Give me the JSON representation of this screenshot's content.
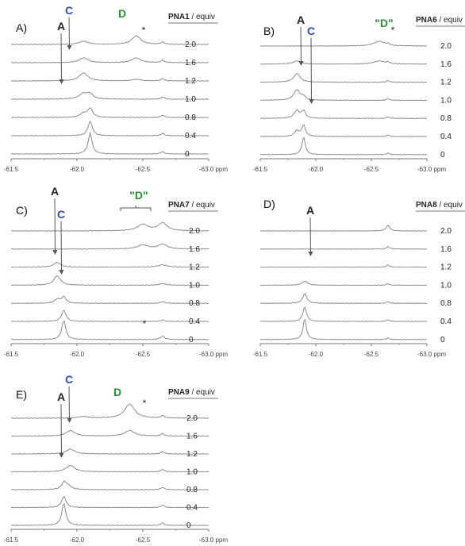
{
  "colors": {
    "trace": "#8c8c8c",
    "label_A": "#222222",
    "label_C": "#2f4fa8",
    "label_D": "#2e8b3a",
    "arrow": "#555555"
  },
  "chart_data": [
    {
      "type": "line",
      "panel": "A)",
      "compound": "PNA1",
      "equiv_label": " / equiv",
      "equivalents": [
        "2.0",
        "1.6",
        "1.2",
        "1.0",
        "0.8",
        "0.4",
        "0"
      ],
      "x_ticks": [
        "-61.5",
        "-62.0",
        "-62.5",
        "-63.0 ppm"
      ],
      "xlim": [
        -61.5,
        -63.0
      ],
      "peak_labels": [
        {
          "text": "A",
          "ppm": -62.1
        },
        {
          "text": "C",
          "ppm": -62.05
        },
        {
          "text": "D",
          "ppm": -62.45
        },
        {
          "text": "*",
          "ppm": -62.65
        }
      ]
    },
    {
      "type": "line",
      "panel": "B)",
      "compound": "PNA6",
      "equiv_label": " / equiv",
      "equivalents": [
        "2.0",
        "1.6",
        "1.2",
        "1.0",
        "0.8",
        "0.4",
        "0"
      ],
      "x_ticks": [
        "-61.5",
        "-62.0",
        "-62.5",
        "-63.0 ppm"
      ],
      "xlim": [
        -61.5,
        -63.0
      ],
      "peak_labels": [
        {
          "text": "C",
          "ppm": -61.83
        },
        {
          "text": "A",
          "ppm": -61.89
        },
        {
          "text": "\"D\"",
          "ppm": -62.57
        },
        {
          "text": "*",
          "ppm": -62.65
        }
      ]
    },
    {
      "type": "line",
      "panel": "C)",
      "compound": "PNA7",
      "equiv_label": " / equiv",
      "equivalents": [
        "2.0",
        "1.6",
        "1.2",
        "1.0",
        "0.8",
        "0.4",
        "0"
      ],
      "x_ticks": [
        "-61.5",
        "-62.0",
        "-62.5",
        "-63.0 ppm"
      ],
      "xlim": [
        -61.5,
        -63.0
      ],
      "peak_labels": [
        {
          "text": "C",
          "ppm": -61.85
        },
        {
          "text": "A",
          "ppm": -61.9
        },
        {
          "text": "\"D\"",
          "ppm": -62.56
        },
        {
          "text": "*",
          "ppm": -62.65
        }
      ]
    },
    {
      "type": "line",
      "panel": "D)",
      "compound": "PNA8",
      "equiv_label": " / equiv",
      "equivalents": [
        "2.0",
        "1.6",
        "1.2",
        "1.0",
        "0.8",
        "0.4",
        "0"
      ],
      "x_ticks": [
        "-61.5",
        "-62.0",
        "-62.5",
        "-63.0 ppm"
      ],
      "xlim": [
        -61.5,
        -63.0
      ],
      "peak_labels": [
        {
          "text": "A",
          "ppm": -61.9
        },
        {
          "text": "*",
          "ppm": -62.65
        }
      ]
    },
    {
      "type": "line",
      "panel": "E)",
      "compound": "PNA9",
      "equiv_label": " / equiv",
      "equivalents": [
        "2.0",
        "1.6",
        "1.2",
        "1.0",
        "0.8",
        "0.4",
        "0"
      ],
      "x_ticks": [
        "-61.5",
        "-62.0",
        "-62.5",
        "-63.0 ppm"
      ],
      "xlim": [
        -61.5,
        -63.0
      ],
      "peak_labels": [
        {
          "text": "A",
          "ppm": -61.9
        },
        {
          "text": "C",
          "ppm": -61.95
        },
        {
          "text": "D",
          "ppm": -62.4
        },
        {
          "text": "*",
          "ppm": -62.65
        }
      ]
    }
  ]
}
